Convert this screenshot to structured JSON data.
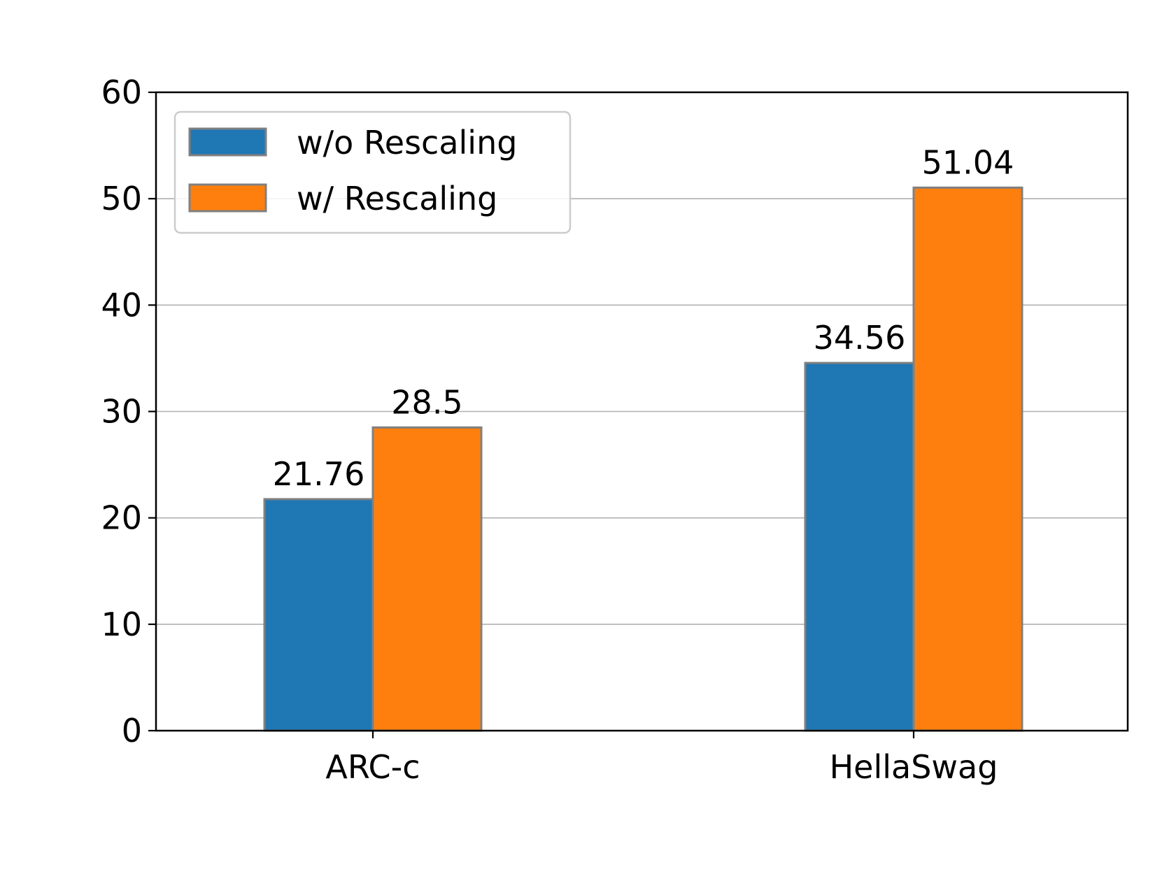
{
  "chart_data": {
    "type": "bar",
    "title": "",
    "xlabel": "",
    "ylabel": "",
    "categories": [
      "ARC-c",
      "HellaSwag"
    ],
    "series": [
      {
        "name": "w/o Rescaling",
        "color": "#1f77b4",
        "values": [
          21.76,
          34.56
        ]
      },
      {
        "name": "w/ Rescaling",
        "color": "#ff7f0e",
        "values": [
          28.5,
          51.04
        ]
      }
    ],
    "data_labels": [
      [
        "21.76",
        "34.56"
      ],
      [
        "28.5",
        "51.04"
      ]
    ],
    "ylim": [
      0,
      60
    ],
    "yticks": [
      0,
      10,
      20,
      30,
      40,
      50,
      60
    ],
    "ytick_labels": [
      "0",
      "10",
      "20",
      "30",
      "40",
      "50",
      "60"
    ],
    "grid": "y",
    "legend_position": "top-left",
    "bar_edge_color": "#808080"
  }
}
